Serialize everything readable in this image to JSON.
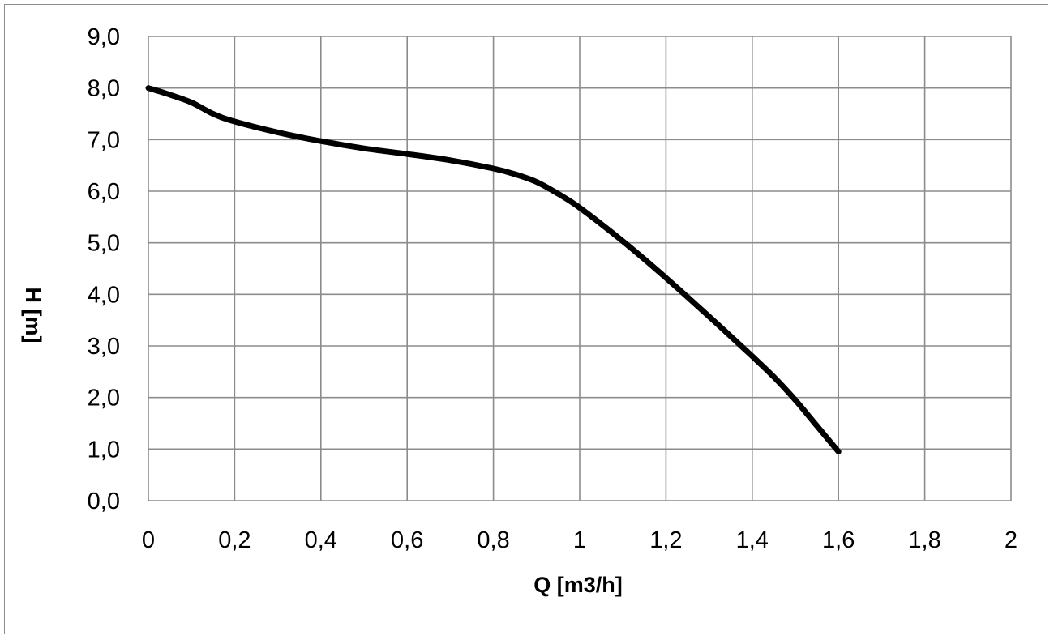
{
  "chart_data": {
    "type": "line",
    "title": "",
    "xlabel": "Q [m3/h]",
    "ylabel": "H [m]",
    "xlim": [
      0,
      2
    ],
    "ylim": [
      0,
      9
    ],
    "x_ticks": [
      0,
      0.2,
      0.4,
      0.6,
      0.8,
      1,
      1.2,
      1.4,
      1.6,
      1.8,
      2
    ],
    "x_tick_labels": [
      "0",
      "0,2",
      "0,4",
      "0,6",
      "0,8",
      "1",
      "1,2",
      "1,4",
      "1,6",
      "1,8",
      "2"
    ],
    "y_ticks": [
      0,
      1,
      2,
      3,
      4,
      5,
      6,
      7,
      8,
      9
    ],
    "y_tick_labels": [
      "0,0",
      "1,0",
      "2,0",
      "3,0",
      "4,0",
      "5,0",
      "6,0",
      "7,0",
      "8,0",
      "9,0"
    ],
    "grid": true,
    "legend": "none",
    "series": [
      {
        "color": "#000000",
        "x": [
          0,
          0.05,
          0.1,
          0.15,
          0.2,
          0.3,
          0.4,
          0.5,
          0.6,
          0.7,
          0.8,
          0.85,
          0.9,
          0.95,
          1.0,
          1.1,
          1.2,
          1.3,
          1.4,
          1.45,
          1.5,
          1.55,
          1.6
        ],
        "y": [
          8.0,
          7.87,
          7.72,
          7.5,
          7.35,
          7.14,
          6.97,
          6.83,
          6.72,
          6.6,
          6.44,
          6.33,
          6.18,
          5.95,
          5.68,
          5.03,
          4.32,
          3.57,
          2.8,
          2.4,
          1.95,
          1.45,
          0.95
        ]
      }
    ]
  }
}
